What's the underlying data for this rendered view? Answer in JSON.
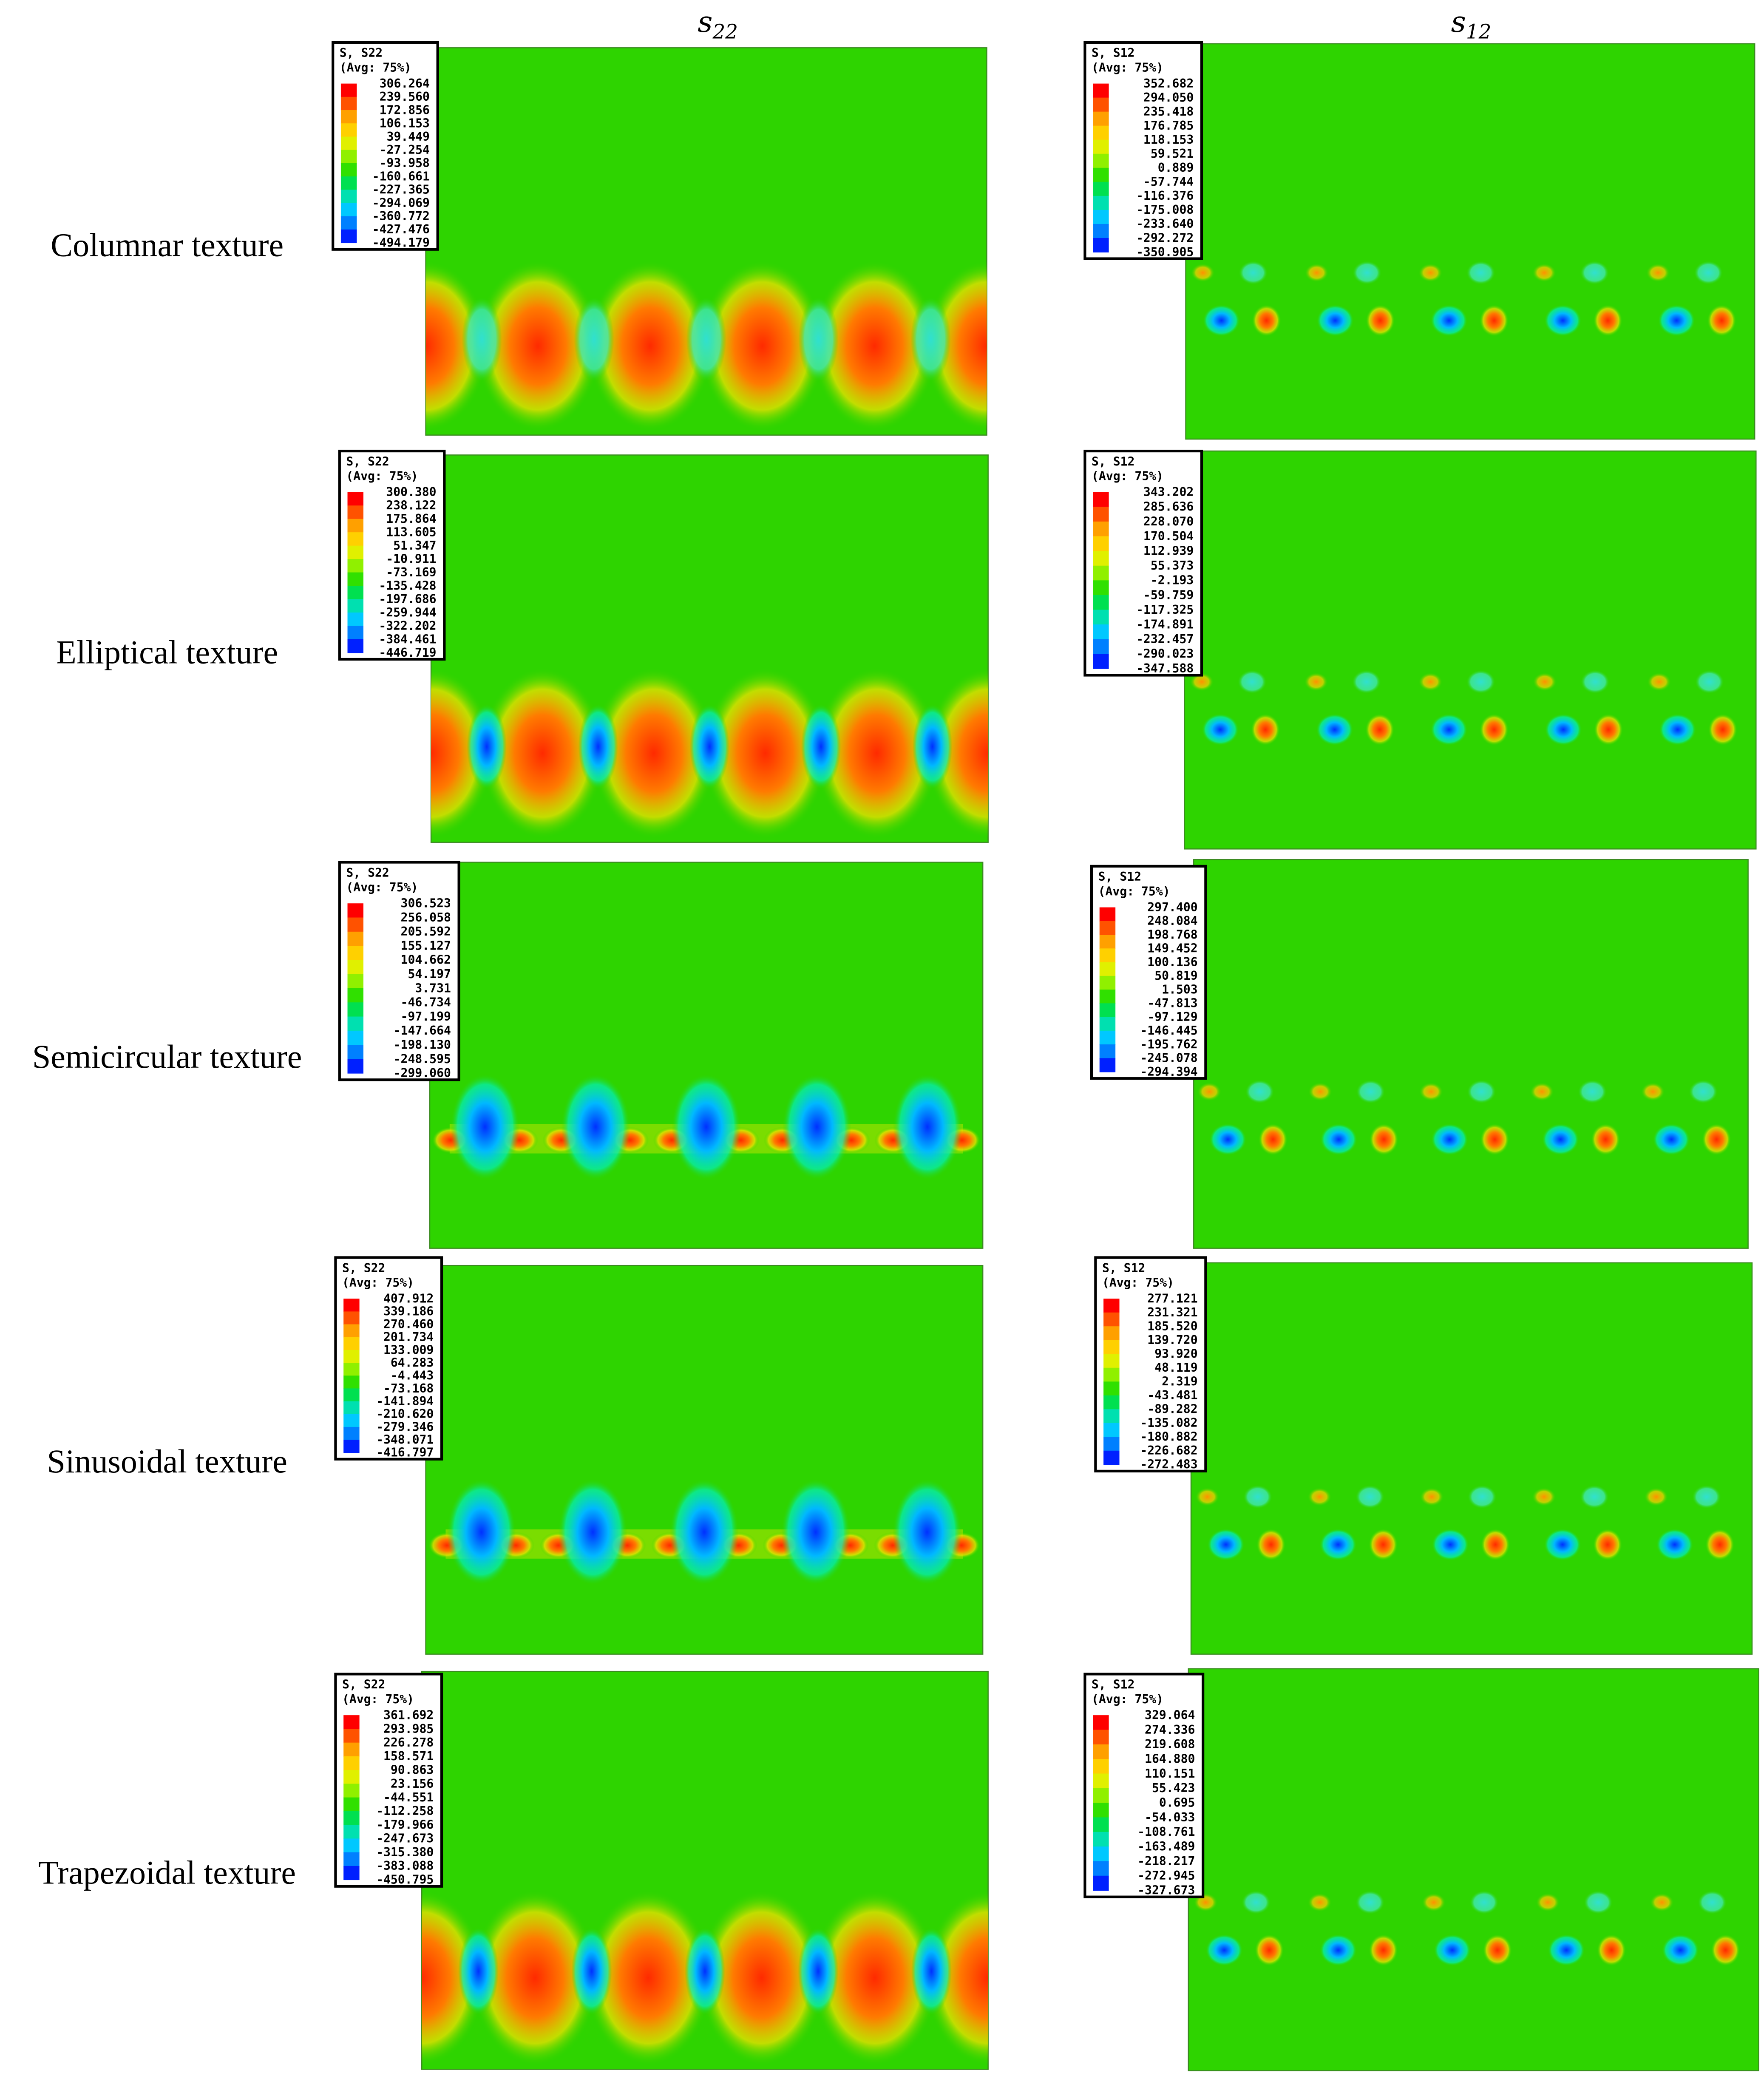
{
  "headers": [
    {
      "base": "s",
      "sub": "22"
    },
    {
      "base": "s",
      "sub": "12"
    }
  ],
  "rows": [
    {
      "label": "Columnar texture",
      "panels": [
        {
          "legend": {
            "title": "S, S22",
            "avg": "(Avg: 75%)",
            "values": [
              "306.264",
              "239.560",
              "172.856",
              "106.153",
              "39.449",
              "-27.254",
              "-93.958",
              "-160.661",
              "-227.365",
              "-294.069",
              "-360.772",
              "-427.476",
              "-494.179"
            ]
          }
        },
        {
          "legend": {
            "title": "S, S12",
            "avg": "(Avg: 75%)",
            "values": [
              "352.682",
              "294.050",
              "235.418",
              "176.785",
              "118.153",
              "59.521",
              "0.889",
              "-57.744",
              "-116.376",
              "-175.008",
              "-233.640",
              "-292.272",
              "-350.905"
            ]
          }
        }
      ]
    },
    {
      "label": "Elliptical texture",
      "panels": [
        {
          "legend": {
            "title": "S, S22",
            "avg": "(Avg: 75%)",
            "values": [
              "300.380",
              "238.122",
              "175.864",
              "113.605",
              "51.347",
              "-10.911",
              "-73.169",
              "-135.428",
              "-197.686",
              "-259.944",
              "-322.202",
              "-384.461",
              "-446.719"
            ]
          }
        },
        {
          "legend": {
            "title": "S, S12",
            "avg": "(Avg: 75%)",
            "values": [
              "343.202",
              "285.636",
              "228.070",
              "170.504",
              "112.939",
              "55.373",
              "-2.193",
              "-59.759",
              "-117.325",
              "-174.891",
              "-232.457",
              "-290.023",
              "-347.588"
            ]
          }
        }
      ]
    },
    {
      "label": "Semicircular texture",
      "panels": [
        {
          "legend": {
            "title": "S, S22",
            "avg": "(Avg: 75%)",
            "values": [
              "306.523",
              "256.058",
              "205.592",
              "155.127",
              "104.662",
              "54.197",
              "3.731",
              "-46.734",
              "-97.199",
              "-147.664",
              "-198.130",
              "-248.595",
              "-299.060"
            ]
          }
        },
        {
          "legend": {
            "title": "S, S12",
            "avg": "(Avg: 75%)",
            "values": [
              "297.400",
              "248.084",
              "198.768",
              "149.452",
              "100.136",
              "50.819",
              "1.503",
              "-47.813",
              "-97.129",
              "-146.445",
              "-195.762",
              "-245.078",
              "-294.394"
            ]
          }
        }
      ]
    },
    {
      "label": "Sinusoidal texture",
      "panels": [
        {
          "legend": {
            "title": "S, S22",
            "avg": "(Avg: 75%)",
            "values": [
              "407.912",
              "339.186",
              "270.460",
              "201.734",
              "133.009",
              "64.283",
              "-4.443",
              "-73.168",
              "-141.894",
              "-210.620",
              "-279.346",
              "-348.071",
              "-416.797"
            ]
          }
        },
        {
          "legend": {
            "title": "S, S12",
            "avg": "(Avg: 75%)",
            "values": [
              "277.121",
              "231.321",
              "185.520",
              "139.720",
              "93.920",
              "48.119",
              "2.319",
              "-43.481",
              "-89.282",
              "-135.082",
              "-180.882",
              "-226.682",
              "-272.483"
            ]
          }
        }
      ]
    },
    {
      "label": "Trapezoidal texture",
      "panels": [
        {
          "legend": {
            "title": "S, S22",
            "avg": "(Avg: 75%)",
            "values": [
              "361.692",
              "293.985",
              "226.278",
              "158.571",
              "90.863",
              "23.156",
              "-44.551",
              "-112.258",
              "-179.966",
              "-247.673",
              "-315.380",
              "-383.088",
              "-450.795"
            ]
          }
        },
        {
          "legend": {
            "title": "S, S12",
            "avg": "(Avg: 75%)",
            "values": [
              "329.064",
              "274.336",
              "219.608",
              "164.880",
              "110.151",
              "55.423",
              "0.695",
              "-54.033",
              "-108.761",
              "-163.489",
              "-218.217",
              "-272.945",
              "-327.673"
            ]
          }
        }
      ]
    }
  ]
}
